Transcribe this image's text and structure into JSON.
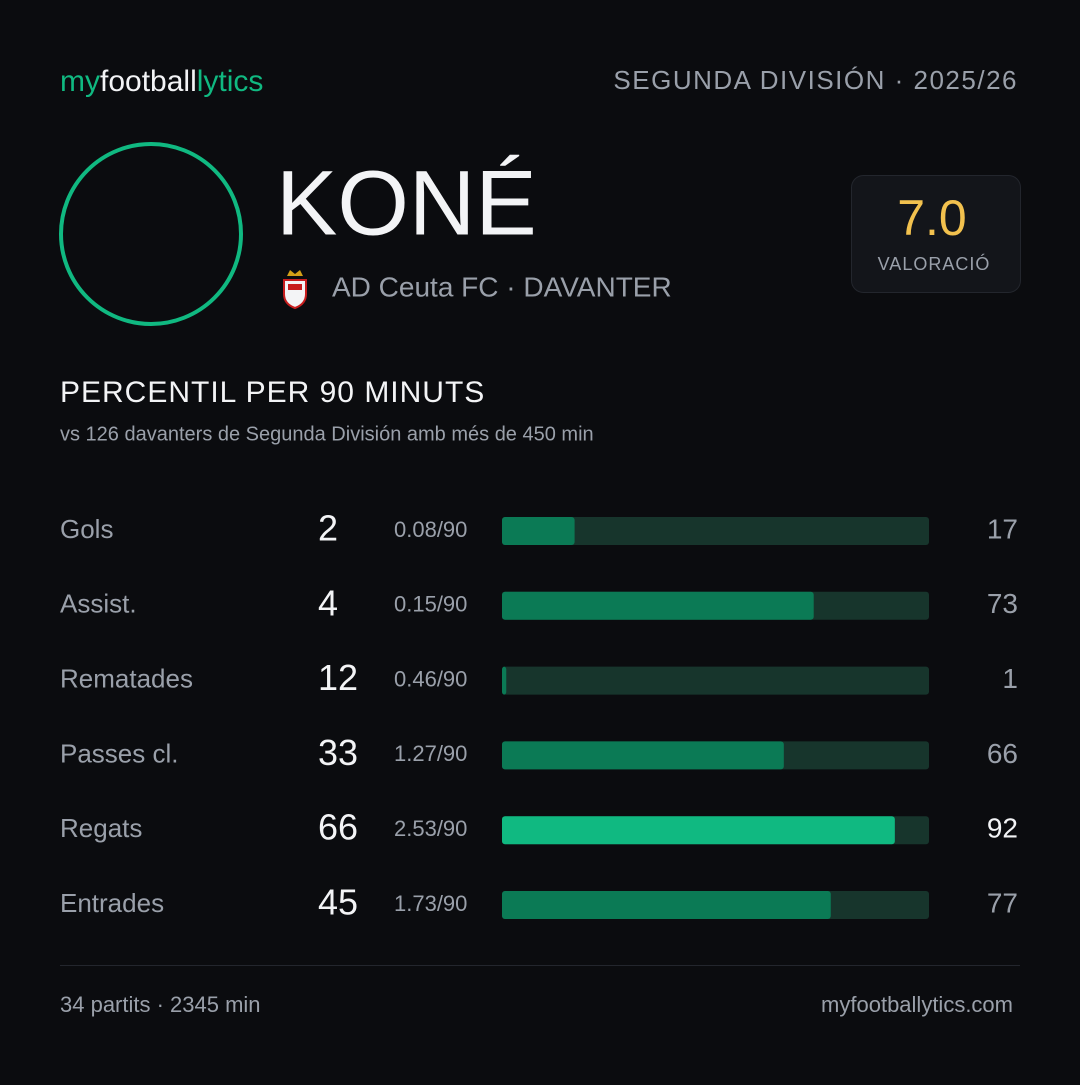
{
  "header": {
    "brand": [
      "my",
      "football",
      "lytics"
    ],
    "league": "SEGUNDA DIVISIÓN · 2025/26"
  },
  "player": {
    "name": "KONÉ",
    "team_position": "AD Ceuta FC · DAVANTER",
    "rating": "7.0",
    "rating_label": "VALORACIÓ"
  },
  "chart_data": {
    "type": "bar",
    "title": "PERCENTIL PER 90 MINUTS",
    "subtitle": "vs 126 davanters de Segunda División amb més de 450 min",
    "categories": [
      "Gols",
      "Assist.",
      "Rematades",
      "Passes cl.",
      "Regats",
      "Entrades"
    ],
    "totals": [
      2,
      4,
      12,
      33,
      66,
      45
    ],
    "per90_labels": [
      "0.08/90",
      "0.15/90",
      "0.46/90",
      "1.27/90",
      "2.53/90",
      "1.73/90"
    ],
    "values": [
      17,
      73,
      1,
      66,
      92,
      77
    ],
    "colors": [
      "#0b7a55",
      "#0b7a55",
      "#0b7a55",
      "#0b7a55",
      "#10b981",
      "#0b7a55"
    ],
    "label_colors": [
      "#9aa0aa",
      "#9aa0aa",
      "#9aa0aa",
      "#9aa0aa",
      "#f3f4f6",
      "#9aa0aa"
    ],
    "track_color": "#17352c",
    "xlim": [
      0,
      100
    ]
  },
  "footer": {
    "stats": "34 partits · 2345 min",
    "site": "myfootballytics.com"
  }
}
